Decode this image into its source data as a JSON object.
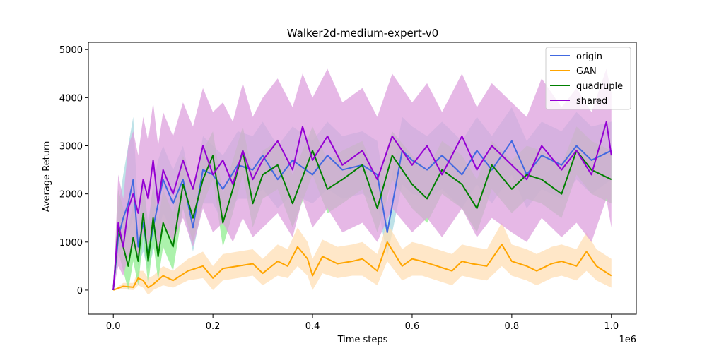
{
  "chart_data": {
    "type": "line",
    "title": "Walker2d-medium-expert-v0",
    "xlabel": "Time steps",
    "ylabel": "Average Return",
    "x_offset_label": "1e6",
    "xlim": [
      -0.05,
      1.05
    ],
    "ylim": [
      -500,
      5150
    ],
    "x_ticks": [
      0.0,
      0.2,
      0.4,
      0.6,
      0.8,
      1.0
    ],
    "x_tick_labels": [
      "0.0",
      "0.2",
      "0.4",
      "0.6",
      "0.8",
      "1.0"
    ],
    "y_ticks": [
      0,
      1000,
      2000,
      3000,
      4000,
      5000
    ],
    "y_tick_labels": [
      "0",
      "1000",
      "2000",
      "3000",
      "4000",
      "5000"
    ],
    "grid": false,
    "legend_position": "top-right",
    "series": [
      {
        "name": "origin",
        "color": "#4169e1",
        "band_color": "#a8d8e0",
        "x": [
          0,
          0.01,
          0.02,
          0.03,
          0.04,
          0.05,
          0.06,
          0.07,
          0.08,
          0.09,
          0.1,
          0.12,
          0.14,
          0.16,
          0.18,
          0.2,
          0.22,
          0.25,
          0.28,
          0.3,
          0.33,
          0.36,
          0.4,
          0.43,
          0.46,
          0.5,
          0.53,
          0.55,
          0.58,
          0.6,
          0.63,
          0.66,
          0.7,
          0.73,
          0.76,
          0.8,
          0.83,
          0.86,
          0.9,
          0.93,
          0.96,
          1.0
        ],
        "y": [
          0,
          1100,
          1500,
          1800,
          2300,
          900,
          1400,
          700,
          1300,
          1800,
          2300,
          1800,
          2300,
          1300,
          2500,
          2400,
          2100,
          2600,
          2500,
          2800,
          2300,
          2700,
          2400,
          2800,
          2500,
          2600,
          2400,
          1200,
          2900,
          2700,
          2500,
          2800,
          2400,
          2900,
          2500,
          3100,
          2400,
          2800,
          2600,
          3000,
          2700,
          2900
        ],
        "lower": [
          0,
          700,
          1000,
          1200,
          1500,
          500,
          800,
          400,
          800,
          1200,
          1600,
          1200,
          1700,
          800,
          1800,
          1800,
          1400,
          1900,
          1900,
          2100,
          1700,
          2000,
          1800,
          2100,
          1900,
          2000,
          1800,
          700,
          2200,
          2000,
          1900,
          2100,
          1700,
          2200,
          1800,
          2400,
          1700,
          2100,
          1900,
          2300,
          2000,
          2300
        ],
        "upper": [
          0,
          1700,
          2400,
          3000,
          3600,
          1600,
          2300,
          1400,
          2200,
          2700,
          3000,
          2500,
          3000,
          2000,
          3200,
          3000,
          2800,
          3300,
          3200,
          3500,
          3000,
          3400,
          3100,
          3500,
          3200,
          3300,
          3100,
          1800,
          3600,
          3400,
          3200,
          3500,
          3100,
          3600,
          3200,
          3800,
          3100,
          3500,
          3300,
          3700,
          3400,
          3500
        ]
      },
      {
        "name": "GAN",
        "color": "#ffa500",
        "band_color": "#ffdfb5",
        "x": [
          0,
          0.02,
          0.04,
          0.05,
          0.06,
          0.07,
          0.08,
          0.1,
          0.12,
          0.15,
          0.18,
          0.2,
          0.22,
          0.25,
          0.28,
          0.3,
          0.33,
          0.35,
          0.37,
          0.39,
          0.4,
          0.42,
          0.45,
          0.48,
          0.5,
          0.53,
          0.55,
          0.58,
          0.6,
          0.62,
          0.65,
          0.68,
          0.7,
          0.72,
          0.75,
          0.78,
          0.8,
          0.83,
          0.85,
          0.88,
          0.9,
          0.93,
          0.95,
          0.97,
          1.0
        ],
        "y": [
          0,
          80,
          60,
          250,
          200,
          50,
          120,
          300,
          200,
          400,
          500,
          250,
          450,
          500,
          550,
          350,
          600,
          500,
          900,
          650,
          300,
          700,
          550,
          600,
          650,
          400,
          1000,
          500,
          650,
          600,
          500,
          400,
          600,
          550,
          500,
          950,
          600,
          500,
          400,
          550,
          600,
          500,
          800,
          500,
          300
        ],
        "lower": [
          0,
          20,
          0,
          100,
          50,
          -100,
          0,
          100,
          50,
          200,
          250,
          0,
          200,
          250,
          300,
          100,
          300,
          250,
          500,
          300,
          0,
          350,
          250,
          300,
          300,
          100,
          600,
          200,
          300,
          300,
          200,
          100,
          300,
          250,
          200,
          500,
          300,
          200,
          100,
          250,
          300,
          200,
          400,
          200,
          50
        ],
        "upper": [
          0,
          150,
          150,
          400,
          400,
          250,
          300,
          500,
          400,
          650,
          800,
          500,
          750,
          800,
          850,
          650,
          950,
          850,
          1300,
          1000,
          650,
          1050,
          900,
          950,
          1000,
          750,
          1400,
          850,
          1000,
          950,
          850,
          750,
          950,
          900,
          850,
          1400,
          950,
          850,
          750,
          900,
          950,
          850,
          1200,
          850,
          650
        ]
      },
      {
        "name": "quadruple",
        "color": "#008000",
        "band_color": "#90ee90",
        "x": [
          0,
          0.01,
          0.02,
          0.03,
          0.04,
          0.05,
          0.06,
          0.07,
          0.08,
          0.09,
          0.1,
          0.12,
          0.14,
          0.16,
          0.18,
          0.2,
          0.22,
          0.24,
          0.26,
          0.28,
          0.3,
          0.33,
          0.36,
          0.4,
          0.43,
          0.46,
          0.5,
          0.53,
          0.56,
          0.6,
          0.63,
          0.66,
          0.7,
          0.73,
          0.76,
          0.8,
          0.83,
          0.86,
          0.9,
          0.93,
          0.96,
          1.0
        ],
        "y": [
          0,
          1300,
          900,
          500,
          1100,
          600,
          1600,
          600,
          1500,
          700,
          1400,
          900,
          2200,
          1500,
          2300,
          2800,
          1400,
          2100,
          2900,
          1800,
          2400,
          2600,
          1800,
          2900,
          2100,
          2300,
          2600,
          1700,
          2800,
          2200,
          1900,
          2500,
          2200,
          1700,
          2600,
          2100,
          2400,
          2300,
          2000,
          2900,
          2500,
          2300
        ],
        "lower": [
          0,
          800,
          400,
          0,
          600,
          100,
          1100,
          100,
          1000,
          200,
          900,
          400,
          1700,
          1000,
          1800,
          2300,
          900,
          1600,
          2400,
          1300,
          1900,
          2100,
          1300,
          2400,
          1600,
          1800,
          2100,
          1200,
          2300,
          1700,
          1400,
          2000,
          1700,
          1200,
          2100,
          1600,
          1900,
          1800,
          1500,
          2400,
          2000,
          1800
        ],
        "upper": [
          0,
          2100,
          1700,
          1300,
          1800,
          1200,
          2300,
          1300,
          2200,
          1400,
          2100,
          1600,
          2800,
          2100,
          2900,
          3300,
          2000,
          2700,
          3400,
          2400,
          2900,
          3100,
          2400,
          3400,
          2700,
          2900,
          3100,
          2300,
          3300,
          2800,
          2500,
          3100,
          2800,
          2300,
          3100,
          2700,
          3000,
          2900,
          2600,
          3400,
          3100,
          2900
        ]
      },
      {
        "name": "shared",
        "color": "#9400d3",
        "band_color": "#dda0dd",
        "x": [
          0,
          0.01,
          0.02,
          0.03,
          0.04,
          0.05,
          0.06,
          0.07,
          0.08,
          0.09,
          0.1,
          0.12,
          0.14,
          0.16,
          0.18,
          0.2,
          0.22,
          0.24,
          0.26,
          0.28,
          0.3,
          0.33,
          0.36,
          0.38,
          0.4,
          0.43,
          0.46,
          0.5,
          0.53,
          0.56,
          0.6,
          0.63,
          0.66,
          0.7,
          0.73,
          0.76,
          0.8,
          0.83,
          0.86,
          0.9,
          0.93,
          0.96,
          0.99,
          1.0
        ],
        "y": [
          0,
          1400,
          900,
          1700,
          2000,
          1600,
          2300,
          1900,
          2700,
          1800,
          2500,
          2000,
          2700,
          2100,
          3000,
          2400,
          2700,
          2200,
          2900,
          2300,
          2700,
          3100,
          2500,
          3400,
          2700,
          3200,
          2600,
          2900,
          2300,
          3200,
          2600,
          3000,
          2400,
          3200,
          2500,
          3000,
          2600,
          2300,
          3000,
          2500,
          2900,
          2400,
          3500,
          2800
        ],
        "lower": [
          0,
          500,
          300,
          700,
          900,
          700,
          1200,
          900,
          1500,
          800,
          1400,
          1000,
          1500,
          900,
          1700,
          1200,
          1400,
          1000,
          1500,
          1100,
          1300,
          1600,
          1100,
          1900,
          1300,
          1700,
          1200,
          1400,
          1000,
          1700,
          1200,
          1500,
          1100,
          1700,
          1100,
          1500,
          1200,
          1000,
          1500,
          1100,
          1400,
          1000,
          1900,
          1300
        ],
        "upper": [
          0,
          2400,
          1900,
          3000,
          3300,
          2800,
          3600,
          3100,
          3900,
          3000,
          3700,
          3200,
          3900,
          3400,
          4200,
          3700,
          3900,
          3500,
          4300,
          3600,
          4000,
          4400,
          3800,
          4500,
          4000,
          4600,
          3900,
          4200,
          3600,
          4500,
          3900,
          4300,
          3700,
          4500,
          3800,
          4300,
          3900,
          3600,
          4400,
          3800,
          4200,
          3700,
          4600,
          4100
        ]
      }
    ]
  }
}
